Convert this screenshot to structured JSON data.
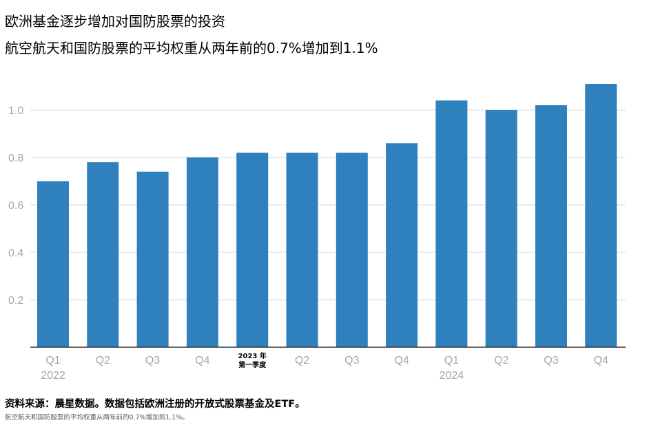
{
  "header": {
    "title": "欧洲基金逐步增加对国防股票的投资",
    "subtitle": "航空航天和国防股票的平均权重从两年前的0.7%增加到1.1%"
  },
  "footer": {
    "source": "资料来源：晨星数据。数据包括欧洲注册的开放式股票基金及ETF。",
    "note": "航空航天和国防股票的平均权重从两年前的0.7%增加到1.1%。"
  },
  "colors": {
    "bar": "#2e81bd",
    "grid": "#d9d9d9",
    "axis": "#333333"
  },
  "chart_data": {
    "type": "bar",
    "title": "欧洲基金逐步增加对国防股票的投资",
    "subtitle": "航空航天和国防股票的平均权重从两年前的0.7%增加到1.1%",
    "xlabel": "",
    "ylabel": "",
    "ylim": [
      0,
      1.2
    ],
    "yticks": [
      "0.2",
      "0.4",
      "0.6",
      "0.8",
      "1.0"
    ],
    "grid": true,
    "categories": [
      {
        "label": "Q1",
        "sub": "2022"
      },
      {
        "label": "Q2",
        "sub": ""
      },
      {
        "label": "Q3",
        "sub": ""
      },
      {
        "label": "Q4",
        "sub": ""
      },
      {
        "label": "2023 年",
        "sub": "第一季度",
        "emphasis": true
      },
      {
        "label": "Q2",
        "sub": ""
      },
      {
        "label": "Q3",
        "sub": ""
      },
      {
        "label": "Q4",
        "sub": ""
      },
      {
        "label": "Q1",
        "sub": "2024"
      },
      {
        "label": "Q2",
        "sub": ""
      },
      {
        "label": "Q3",
        "sub": ""
      },
      {
        "label": "Q4",
        "sub": ""
      }
    ],
    "values": [
      0.7,
      0.78,
      0.74,
      0.8,
      0.82,
      0.82,
      0.82,
      0.86,
      1.04,
      1.0,
      1.02,
      1.11
    ]
  }
}
